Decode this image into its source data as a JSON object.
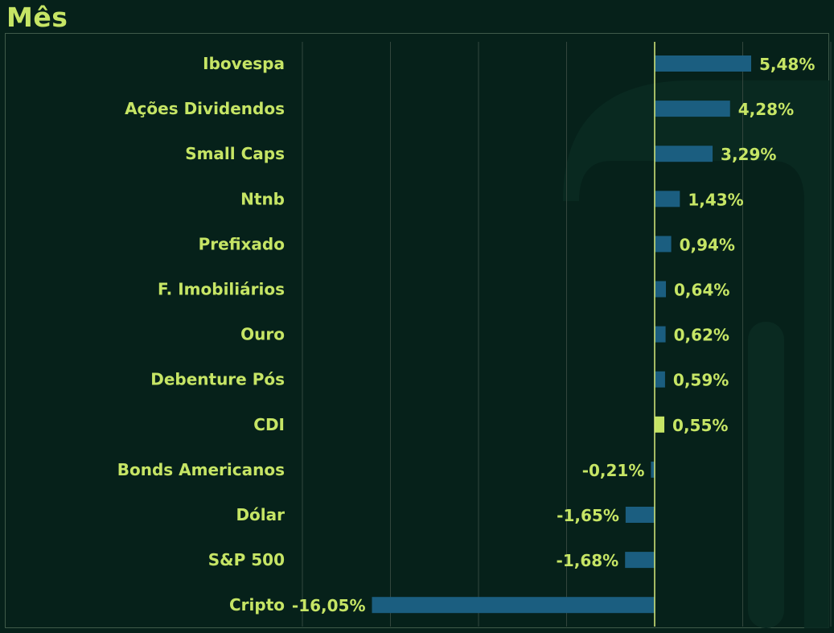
{
  "header": {
    "title": "Mês"
  },
  "colors": {
    "background": "#06211a",
    "bar": "#1b5e80",
    "highlight_bar": "#c6e565",
    "text": "#c6e565",
    "zero_line": "#d8ec7c",
    "grid": "#33463d"
  },
  "chart_data": {
    "type": "bar",
    "orientation": "horizontal",
    "title": "Mês",
    "categories": [
      "Ibovespa",
      "Ações Dividendos",
      "Small Caps",
      "Ntnb",
      "Prefixado",
      "F. Imobiliários",
      "Ouro",
      "Debenture Pós",
      "CDI",
      "Bonds Americanos",
      "Dólar",
      "S&P 500",
      "Cripto"
    ],
    "values": [
      5.48,
      4.28,
      3.29,
      1.43,
      0.94,
      0.64,
      0.62,
      0.59,
      0.55,
      -0.21,
      -1.65,
      -1.68,
      -16.05
    ],
    "value_labels": [
      "5,48%",
      "4,28%",
      "3,29%",
      "1,43%",
      "0,94%",
      "0,64%",
      "0,62%",
      "0,59%",
      "0,55%",
      "-0,21%",
      "-1,65%",
      "-1,68%",
      "-16,05%"
    ],
    "highlight_category": "CDI",
    "xlim": [
      -20,
      10
    ],
    "grid": true,
    "xlabel": "",
    "ylabel": ""
  }
}
